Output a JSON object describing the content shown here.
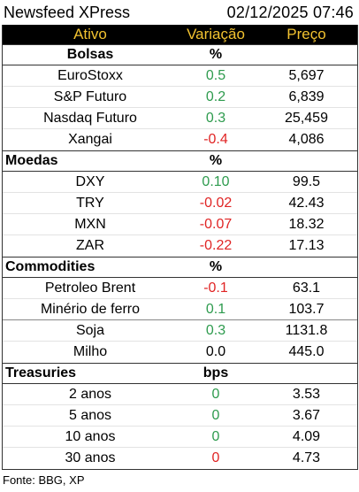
{
  "header": {
    "title": "Newsfeed XPress",
    "timestamp": "02/12/2025 07:46"
  },
  "columns": {
    "asset": "Ativo",
    "change": "Variação",
    "price": "Preço"
  },
  "sections": [
    {
      "name": "Bolsas",
      "unit": "%",
      "rows": [
        {
          "asset": "EuroStoxx",
          "change": "0.5",
          "trend": "pos",
          "price": "5,697"
        },
        {
          "asset": "S&P Futuro",
          "change": "0.2",
          "trend": "pos",
          "price": "6,839"
        },
        {
          "asset": "Nasdaq Futuro",
          "change": "0.3",
          "trend": "pos",
          "price": "25,459"
        },
        {
          "asset": "Xangai",
          "change": "-0.4",
          "trend": "neg",
          "price": "4,086"
        }
      ]
    },
    {
      "name": "Moedas",
      "unit": "%",
      "rows": [
        {
          "asset": "DXY",
          "change": "0.10",
          "trend": "pos",
          "price": "99.5"
        },
        {
          "asset": "TRY",
          "change": "-0.02",
          "trend": "neg",
          "price": "42.43"
        },
        {
          "asset": "MXN",
          "change": "-0.07",
          "trend": "neg",
          "price": "18.32"
        },
        {
          "asset": "ZAR",
          "change": "-0.22",
          "trend": "neg",
          "price": "17.13"
        }
      ]
    },
    {
      "name": "Commodities",
      "unit": "%",
      "rows": [
        {
          "asset": "Petroleo Brent",
          "change": "-0.1",
          "trend": "neg",
          "price": "63.1"
        },
        {
          "asset": "Minério de ferro",
          "change": "0.1",
          "trend": "pos",
          "price": "103.7"
        },
        {
          "asset": "Soja",
          "change": "0.3",
          "trend": "pos",
          "price": "1131.8"
        },
        {
          "asset": "Milho",
          "change": "0.0",
          "trend": "neu",
          "price": "445.0"
        }
      ]
    },
    {
      "name": "Treasuries",
      "unit": "bps",
      "rows": [
        {
          "asset": "2 anos",
          "change": "0",
          "trend": "pos",
          "price": "3.53"
        },
        {
          "asset": "5 anos",
          "change": "0",
          "trend": "pos",
          "price": "3.67"
        },
        {
          "asset": "10 anos",
          "change": "0",
          "trend": "pos",
          "price": "4.09"
        },
        {
          "asset": "30 anos",
          "change": "0",
          "trend": "neg",
          "price": "4.73"
        }
      ]
    }
  ],
  "colors": {
    "positive": "#2e9b4e",
    "negative": "#e02424",
    "header_text": "#f2c230",
    "header_bg": "#000000"
  },
  "footer": {
    "source": "Fonte: BBG, XP"
  }
}
